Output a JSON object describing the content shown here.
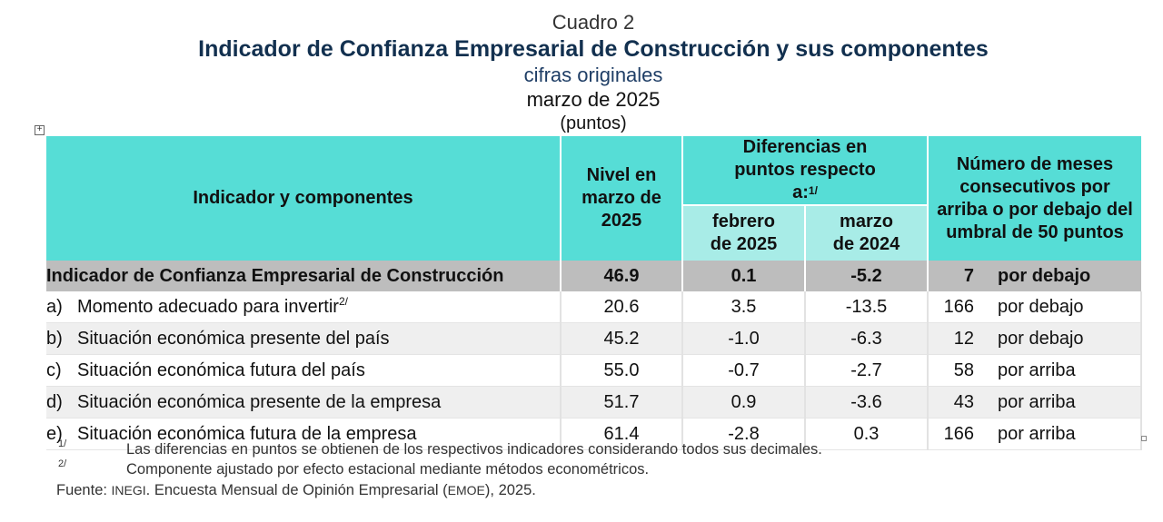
{
  "header": {
    "cuadro": "Cuadro 2",
    "title": "Indicador de Confianza Empresarial de Construcción y sus componentes",
    "subtitle": "cifras originales",
    "period": "marzo de 2025",
    "units": "(puntos)"
  },
  "table": {
    "col_indicador": "Indicador y componentes",
    "col_nivel": "Nivel en marzo de 2025",
    "col_diferencias": "Diferencias en puntos respecto a:",
    "col_diferencias_note": "1/",
    "col_febrero": "febrero de 2025",
    "col_marzo": "marzo de 2024",
    "col_meses": "Número de meses consecutivos por arriba o por debajo del umbral de 50 puntos",
    "total": {
      "name": "Indicador de Confianza Empresarial de Construcción",
      "nivel": "46.9",
      "feb": "0.1",
      "mar": "-5.2",
      "meses": "7",
      "dir": "por debajo"
    },
    "rows": [
      {
        "letter": "a)",
        "name": "Momento adecuado para invertir",
        "note": "2/",
        "nivel": "20.6",
        "feb": "3.5",
        "mar": "-13.5",
        "meses": "166",
        "dir": "por debajo"
      },
      {
        "letter": "b)",
        "name": "Situación económica presente del país",
        "note": "",
        "nivel": "45.2",
        "feb": "-1.0",
        "mar": "-6.3",
        "meses": "12",
        "dir": "por debajo"
      },
      {
        "letter": "c)",
        "name": "Situación económica futura del país",
        "note": "",
        "nivel": "55.0",
        "feb": "-0.7",
        "mar": "-2.7",
        "meses": "58",
        "dir": "por arriba"
      },
      {
        "letter": "d)",
        "name": "Situación económica presente de la empresa",
        "note": "",
        "nivel": "51.7",
        "feb": "0.9",
        "mar": "-3.6",
        "meses": "43",
        "dir": "por arriba"
      },
      {
        "letter": "e)",
        "name": "Situación económica futura de la empresa",
        "note": "",
        "nivel": "61.4",
        "feb": "-2.8",
        "mar": "0.3",
        "meses": "166",
        "dir": "por arriba"
      }
    ]
  },
  "notes": {
    "n1_mark": "1/",
    "n1_text": "Las diferencias en puntos se obtienen de los respectivos indicadores considerando todos sus decimales.",
    "n2_mark": "2/",
    "n2_text": "Componente ajustado por efecto estacional mediante métodos econométricos.",
    "source_prefix": "Fuente: ",
    "source_inegi": "INEGI",
    "source_middle": ". Encuesta Mensual de Opinión Empresarial (",
    "source_emoe": "EMOE",
    "source_end": "), 2025."
  },
  "icons": {
    "expand": "expand-plus-icon"
  },
  "colors": {
    "header_teal": "#56ddd6",
    "subheader_teal": "#a8ece7",
    "total_gray": "#bdbdbd",
    "title_navy": "#12304f"
  }
}
